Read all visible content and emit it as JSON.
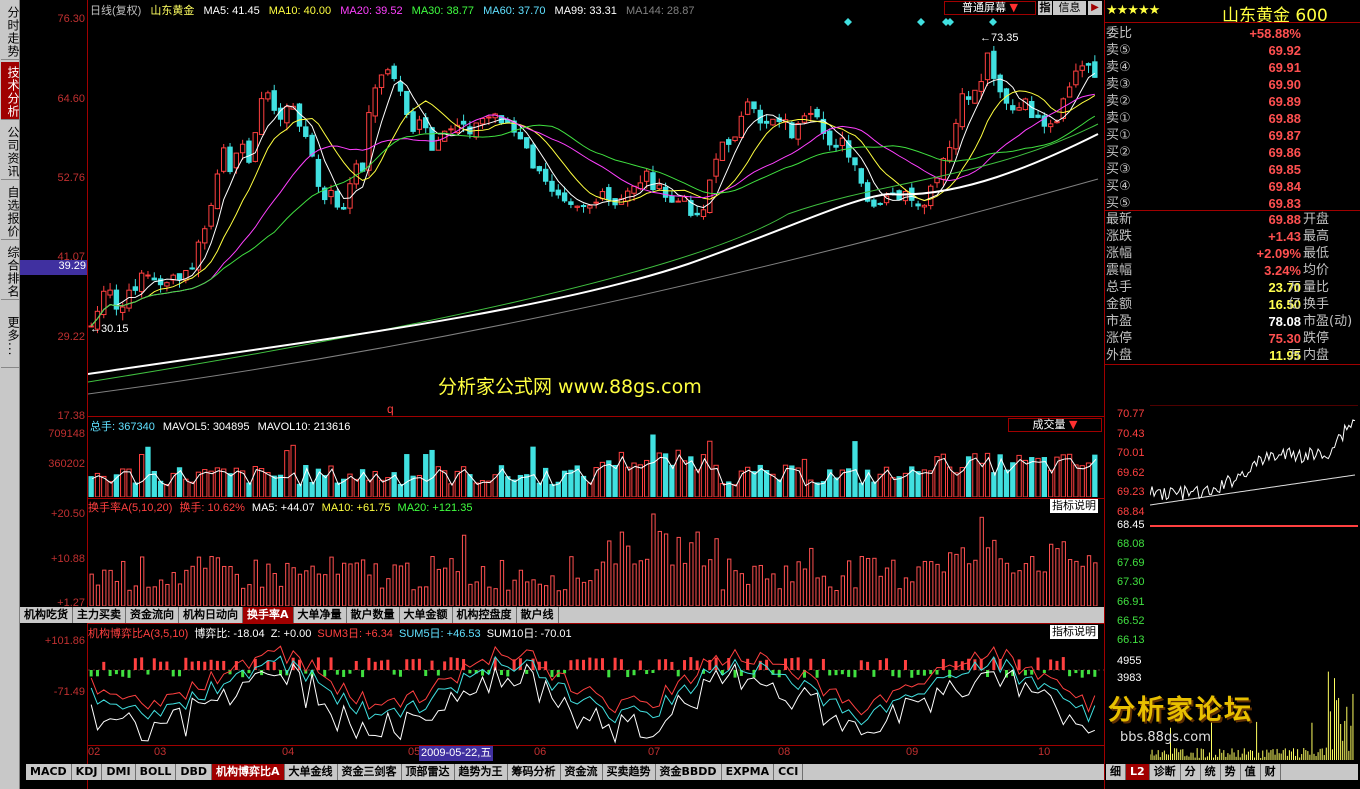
{
  "left_nav": [
    {
      "label": "分时走势"
    },
    {
      "label": "技术分析"
    },
    {
      "label": "公司资讯"
    },
    {
      "label": "自选报价"
    },
    {
      "label": "综合排名"
    },
    {
      "label": "更多..."
    }
  ],
  "main_chart": {
    "header": {
      "period": "日线(复权)",
      "stock": "山东黄金",
      "ma5": "MA5: 41.45",
      "ma10": "MA10: 40.00",
      "ma20": "MA20: 39.52",
      "ma30": "MA30: 38.77",
      "ma60": "MA60: 37.70",
      "ma99": "MA99: 33.31",
      "ma144": "MA144: 28.87"
    },
    "screen_mode": "普通屏幕",
    "btn_zhi": "指",
    "btn_info": "信息",
    "y_ticks": [
      "76.30",
      "64.60",
      "52.76",
      "41.07",
      "29.22",
      "17.38"
    ],
    "highlight_price": "39.29",
    "high_marker": "73.35",
    "low_marker": "30.15",
    "q_marker": "q",
    "watermark": "分析家公式网 www.88gs.com"
  },
  "volume_panel": {
    "header": {
      "total": "总手: 367340",
      "mavol5": "MAVOL5: 304895",
      "mavol10": "MAVOL10: 213616"
    },
    "dropdown": "成交量",
    "y_ticks": [
      "709148",
      "360202"
    ]
  },
  "turnover_panel": {
    "header": {
      "name": "换手率A(5,10,20)",
      "turn": "换手: 10.62%",
      "ma5": "MA5: +44.07",
      "ma10": "MA10: +61.75",
      "ma20": "MA20: +121.35"
    },
    "help": "指标说明",
    "y_ticks": [
      "+20.50",
      "+10.88",
      "+1.27"
    ]
  },
  "indicator_tabs_1": [
    "机构吃货",
    "主力买卖",
    "资金流向",
    "机构日动向",
    "换手率A",
    "大单净量",
    "散户数量",
    "大单金额",
    "机构控盘度",
    "散户线"
  ],
  "indicator_tabs_1_active": 4,
  "game_panel": {
    "header": {
      "name": "机构博弈比A(3,5,10)",
      "ratio": "博弈比: -18.04",
      "z": "Z: +0.00",
      "sum3": "SUM3日: +6.34",
      "sum5": "SUM5日: +46.53",
      "sum10": "SUM10日: -70.01"
    },
    "help": "指标说明",
    "y_ticks": [
      "+101.86",
      "-71.49"
    ]
  },
  "x_axis": {
    "labels": [
      "02",
      "03",
      "04",
      "05",
      "06",
      "07",
      "08",
      "09",
      "10"
    ],
    "cursor_date": "2009-05-22,五"
  },
  "indicator_tabs_2": [
    "MACD",
    "KDJ",
    "DMI",
    "BOLL",
    "DBD",
    "机构博弈比A",
    "大单金线",
    "资金三剑客",
    "顶部雷达",
    "趋势为王",
    "筹码分析",
    "资金流",
    "买卖趋势",
    "资金BBDD",
    "EXPMA",
    "CCI"
  ],
  "indicator_tabs_2_active": 5,
  "quote": {
    "stars": "★★★★★",
    "title": "山东黄金 600",
    "rows": [
      {
        "label": "委比",
        "value": "+58.88%"
      },
      {
        "label": "卖⑤",
        "value": "69.92"
      },
      {
        "label": "卖④",
        "value": "69.91"
      },
      {
        "label": "卖③",
        "value": "69.90"
      },
      {
        "label": "卖②",
        "value": "69.89"
      },
      {
        "label": "卖①",
        "value": "69.88"
      },
      {
        "label": "买①",
        "value": "69.87"
      },
      {
        "label": "买②",
        "value": "69.86"
      },
      {
        "label": "买③",
        "value": "69.85"
      },
      {
        "label": "买④",
        "value": "69.84"
      },
      {
        "label": "买⑤",
        "value": "69.83"
      }
    ],
    "stats": [
      {
        "label": "最新",
        "value": "69.88",
        "label2": "开盘"
      },
      {
        "label": "涨跌",
        "value": "+1.43",
        "label2": "最高"
      },
      {
        "label": "涨幅",
        "value": "+2.09%",
        "label2": "最低"
      },
      {
        "label": "震幅",
        "value": "3.24%",
        "label2": "均价"
      },
      {
        "label": "总手",
        "value": "23.70",
        "unit": "万",
        "label2": "量比"
      },
      {
        "label": "金额",
        "value": "16.50",
        "unit": "亿",
        "label2": "换手"
      },
      {
        "label": "市盈",
        "value": "78.08",
        "label2": "市盈(动)"
      },
      {
        "label": "涨停",
        "value": "75.30",
        "label2": "跌停"
      },
      {
        "label": "外盘",
        "value": "11.95",
        "unit": "万",
        "label2": "内盘"
      }
    ]
  },
  "mini_chart": {
    "y_ticks_up": [
      "70.77",
      "70.43",
      "70.01",
      "69.62",
      "69.23",
      "68.84"
    ],
    "base": "68.45",
    "y_ticks_down": [
      "68.08",
      "67.69",
      "67.30",
      "66.91",
      "66.52",
      "66.13"
    ],
    "vol_ticks": [
      "4955",
      "3983"
    ],
    "watermark": "分析家论坛",
    "watermark_url": "bbs.88gs.com"
  },
  "bottom_tabs": [
    "细",
    "L2",
    "诊断",
    "分",
    "统",
    "势",
    "值",
    "财"
  ],
  "bottom_tabs_active": 1,
  "colors": {
    "up": "#ff4040",
    "down": "#40e0e0",
    "frame": "#a00000",
    "watermark": "#ffff40"
  }
}
